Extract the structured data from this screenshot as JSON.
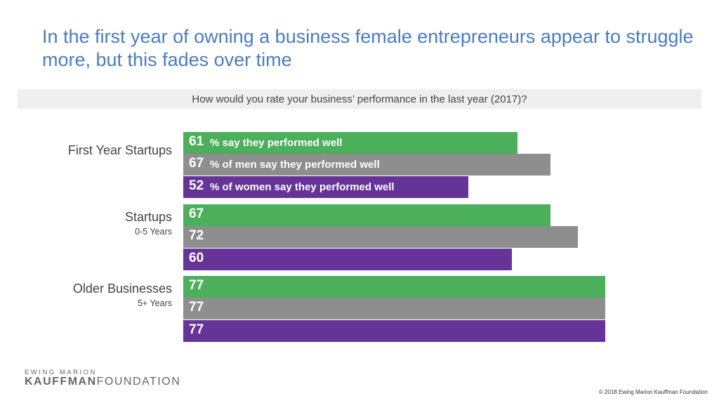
{
  "title": "In the first year of owning a business female entrepreneurs appear to struggle more, but this fades over time",
  "chart_data": {
    "type": "bar",
    "orientation": "horizontal",
    "title": "How would you rate your business’ performance in the last year (2017)?",
    "categories": [
      {
        "name": "First Year Startups",
        "sub": ""
      },
      {
        "name": "Startups",
        "sub": "0-5 Years"
      },
      {
        "name": "Older Businesses",
        "sub": "5+ Years"
      }
    ],
    "series": [
      {
        "name": "% say they performed well",
        "color": "#4caf5c",
        "values": [
          61,
          67,
          77
        ]
      },
      {
        "name": "% of men say they performed well",
        "color": "#8e8e8e",
        "values": [
          67,
          72,
          77
        ]
      },
      {
        "name": "% of women say they performed well",
        "color": "#663399",
        "values": [
          52,
          60,
          77
        ]
      }
    ],
    "xlim": [
      0,
      77
    ],
    "grid": false
  },
  "footer": {
    "logo_top": "EWING MARION",
    "logo_bold": "KAUFFMAN",
    "logo_rest": "FOUNDATION",
    "copyright": "© 2018 Ewing Marion Kauffman Foundation"
  }
}
